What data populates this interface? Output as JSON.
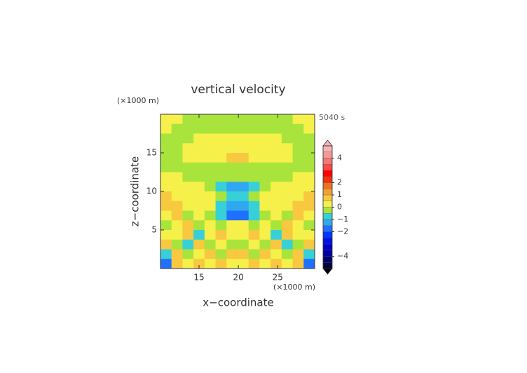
{
  "chart_data": {
    "type": "contour",
    "title": "vertical velocity",
    "time_label": "5040 s",
    "xlabel": "x−coordinate",
    "ylabel": "z−coordinate",
    "x_unit": "(×1000 m)",
    "y_unit": "(×1000 m)",
    "xlim": [
      10.1,
      29.7
    ],
    "ylim": [
      0,
      20
    ],
    "xticks": [
      15,
      20,
      25
    ],
    "yticks": [
      5,
      10,
      15
    ],
    "x": [
      10.8,
      12.2,
      13.6,
      15.0,
      16.4,
      17.8,
      19.2,
      20.6,
      22.0,
      23.4,
      24.8,
      26.2,
      27.6,
      29.0
    ],
    "y": [
      19.375,
      18.125,
      16.875,
      15.625,
      14.375,
      13.125,
      11.875,
      10.625,
      9.375,
      8.125,
      6.875,
      5.625,
      4.375,
      3.125,
      1.875,
      0.625
    ],
    "z": [
      [
        0.2,
        0.2,
        -0.2,
        -0.2,
        -0.2,
        -0.2,
        -0.2,
        -0.2,
        -0.2,
        -0.2,
        -0.2,
        -0.2,
        0.2,
        0.2
      ],
      [
        0.2,
        -0.2,
        -0.2,
        -0.2,
        -0.2,
        -0.2,
        -0.2,
        -0.2,
        -0.2,
        -0.2,
        -0.2,
        -0.2,
        -0.2,
        0.2
      ],
      [
        -0.2,
        -0.2,
        -0.2,
        0.2,
        0.2,
        0.2,
        0.2,
        0.2,
        0.2,
        0.2,
        0.2,
        -0.2,
        -0.2,
        -0.2
      ],
      [
        -0.2,
        -0.2,
        0.2,
        0.2,
        0.2,
        0.3,
        0.3,
        0.3,
        0.3,
        0.2,
        0.2,
        0.2,
        -0.2,
        -0.2
      ],
      [
        -0.2,
        -0.2,
        0.2,
        0.2,
        0.3,
        0.3,
        0.7,
        0.7,
        0.3,
        0.3,
        0.2,
        0.2,
        -0.2,
        -0.2
      ],
      [
        -0.2,
        -0.2,
        -0.2,
        -0.2,
        -0.2,
        -0.2,
        -0.2,
        -0.2,
        -0.2,
        -0.2,
        -0.2,
        -0.2,
        -0.2,
        -0.2
      ],
      [
        0.2,
        0.2,
        -0.2,
        -0.2,
        -0.2,
        -0.2,
        -0.4,
        -0.4,
        -0.2,
        -0.2,
        -0.2,
        -0.2,
        0.2,
        0.2
      ],
      [
        0.2,
        0.2,
        0.2,
        0.2,
        -0.2,
        -0.7,
        -1.2,
        -1.2,
        -0.7,
        -0.2,
        0.2,
        0.2,
        0.2,
        0.2
      ],
      [
        0.6,
        0.2,
        0.2,
        0.2,
        0.3,
        -0.3,
        -0.8,
        -0.8,
        -0.3,
        0.3,
        0.2,
        0.2,
        0.2,
        0.6
      ],
      [
        0.6,
        0.7,
        0.3,
        0.2,
        0.2,
        -0.6,
        -1.2,
        -1.2,
        -0.6,
        0.2,
        0.2,
        0.3,
        0.7,
        0.6
      ],
      [
        0.2,
        0.6,
        -0.2,
        0.3,
        -0.3,
        -0.7,
        -1.7,
        -1.7,
        -0.7,
        -0.3,
        0.3,
        -0.2,
        0.6,
        0.2
      ],
      [
        -0.3,
        0.2,
        0.6,
        -0.2,
        0.3,
        -0.2,
        0.2,
        0.2,
        -0.2,
        0.3,
        -0.2,
        0.6,
        0.2,
        -0.3
      ],
      [
        0.2,
        0.2,
        0.6,
        -0.7,
        0.2,
        0.6,
        0.2,
        0.2,
        0.6,
        0.2,
        -0.7,
        0.6,
        0.2,
        0.2
      ],
      [
        0.7,
        -0.2,
        -0.7,
        0.6,
        -0.2,
        0.3,
        -0.2,
        -0.2,
        0.3,
        -0.2,
        0.6,
        -0.7,
        -0.2,
        0.7
      ],
      [
        -0.7,
        0.6,
        -0.2,
        0.2,
        0.6,
        -0.2,
        0.6,
        0.6,
        -0.2,
        0.6,
        0.2,
        -0.2,
        0.6,
        -0.7
      ],
      [
        -1.7,
        0.6,
        0.2,
        0.7,
        0.2,
        0.6,
        0.2,
        0.2,
        0.6,
        0.2,
        0.7,
        0.2,
        0.6,
        -1.7
      ]
    ],
    "clim": [
      -5,
      5
    ],
    "levels": [
      -5,
      -4.5,
      -4,
      -3.5,
      -3,
      -2.5,
      -2,
      -1.5,
      -1,
      -0.5,
      0,
      0.5,
      1,
      1.5,
      2,
      2.5,
      3,
      3.5,
      4,
      4.5,
      5
    ],
    "colors": [
      "#000040",
      "#000070",
      "#0000a0",
      "#0000c8",
      "#0010e8",
      "#0038ff",
      "#2070ff",
      "#30a8f0",
      "#38d0d8",
      "#a8e43c",
      "#f6f04a",
      "#f8c840",
      "#f0a030",
      "#f07020",
      "#f03010",
      "#ff0000",
      "#ff4848",
      "#f07878",
      "#f49898",
      "#f8b4b4"
    ],
    "cticks": [
      4,
      2,
      1,
      0,
      {
        "value": -1,
        "label": "−1"
      },
      {
        "value": -2,
        "label": "−2"
      },
      {
        "value": -4,
        "label": "−4"
      }
    ]
  }
}
